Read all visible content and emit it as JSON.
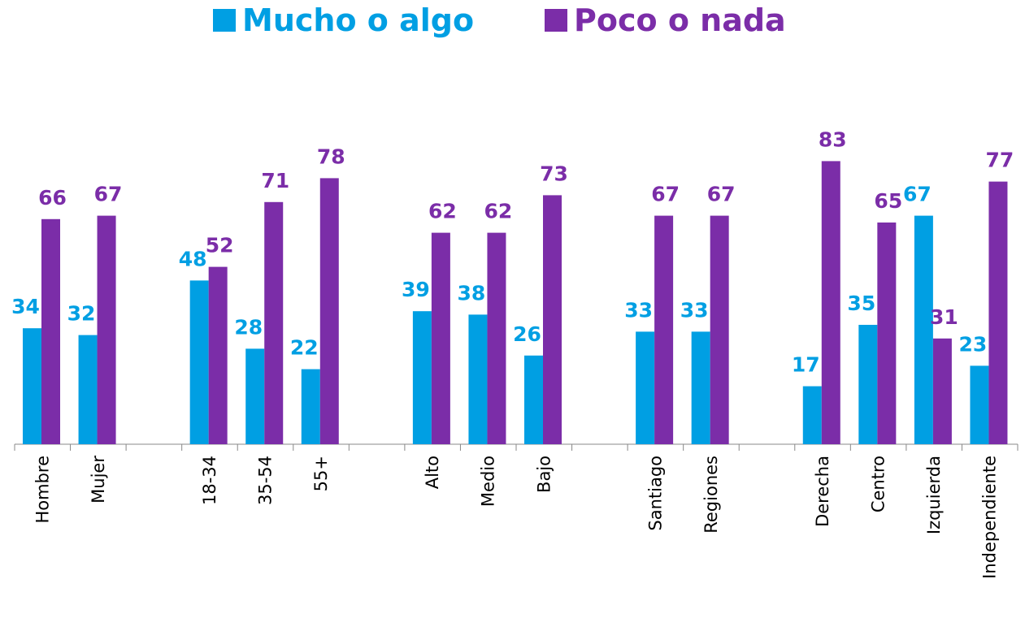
{
  "chart_data": {
    "type": "bar",
    "categories": [
      "Hombre",
      "Mujer",
      null,
      "18-34",
      "35-54",
      "55+",
      null,
      "Alto",
      "Medio",
      "Bajo",
      null,
      "Santiago",
      "Regiones",
      null,
      "Derecha",
      "Centro",
      "Izquierda",
      "Independiente"
    ],
    "series": [
      {
        "name": "Mucho o algo",
        "color": "#009fe3",
        "values": [
          34,
          32,
          null,
          48,
          28,
          22,
          null,
          39,
          38,
          26,
          null,
          33,
          33,
          null,
          17,
          35,
          67,
          23
        ]
      },
      {
        "name": "Poco o nada",
        "color": "#7b2da8",
        "values": [
          66,
          67,
          null,
          52,
          71,
          78,
          null,
          62,
          62,
          73,
          null,
          67,
          67,
          null,
          83,
          65,
          31,
          77
        ]
      }
    ],
    "ylim": [
      0,
      100
    ]
  }
}
